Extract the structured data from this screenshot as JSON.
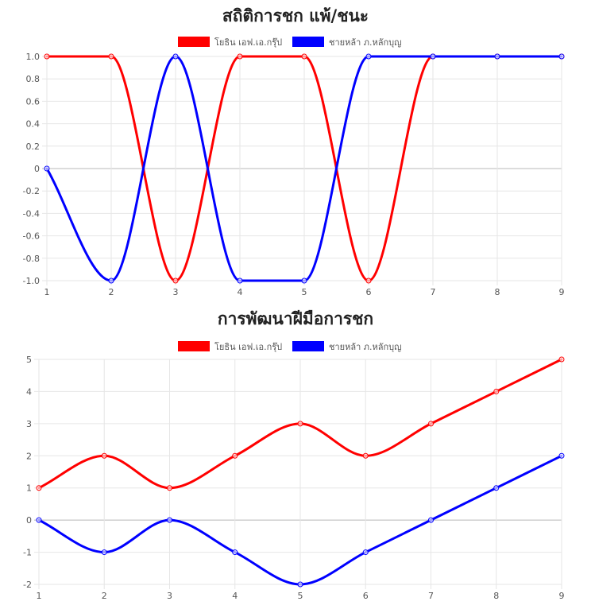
{
  "chart_data": [
    {
      "type": "line",
      "title": "สถิติการชก แพ้/ชนะ",
      "x": [
        1,
        2,
        3,
        4,
        5,
        6,
        7,
        8,
        9
      ],
      "series": [
        {
          "name": "โยธิน เอฟ.เอ.กรุ๊ป",
          "color": "#ff0000",
          "values": [
            1,
            1,
            -1,
            1,
            1,
            -1,
            1,
            1,
            1
          ]
        },
        {
          "name": "ชายหล้า ภ.หลักบุญ",
          "color": "#0000ff",
          "values": [
            0,
            -1,
            1,
            -1,
            -1,
            1,
            1,
            1,
            1
          ]
        }
      ],
      "ylim": [
        -1,
        1
      ],
      "yticks": [
        "1.0",
        "0.8",
        "0.6",
        "0.4",
        "0.2",
        "0",
        "-0.2",
        "-0.4",
        "-0.6",
        "-0.8",
        "-1.0"
      ],
      "ytick_values": [
        1,
        0.8,
        0.6,
        0.4,
        0.2,
        0,
        -0.2,
        -0.4,
        -0.6,
        -0.8,
        -1
      ],
      "legend": "top",
      "grid": true
    },
    {
      "type": "line",
      "title": "การพัฒนาฝีมือการชก",
      "x": [
        1,
        2,
        3,
        4,
        5,
        6,
        7,
        8,
        9
      ],
      "series": [
        {
          "name": "โยธิน เอฟ.เอ.กรุ๊ป",
          "color": "#ff0000",
          "values": [
            1,
            2,
            1,
            2,
            3,
            2,
            3,
            4,
            5
          ]
        },
        {
          "name": "ชายหล้า ภ.หลักบุญ",
          "color": "#0000ff",
          "values": [
            0,
            -1,
            0,
            -1,
            -2,
            -1,
            0,
            1,
            2
          ]
        }
      ],
      "ylim": [
        -2,
        5
      ],
      "yticks": [
        "5",
        "4",
        "3",
        "2",
        "1",
        "0",
        "-1",
        "-2"
      ],
      "ytick_values": [
        5,
        4,
        3,
        2,
        1,
        0,
        -1,
        -2
      ],
      "legend": "top",
      "grid": true
    }
  ]
}
